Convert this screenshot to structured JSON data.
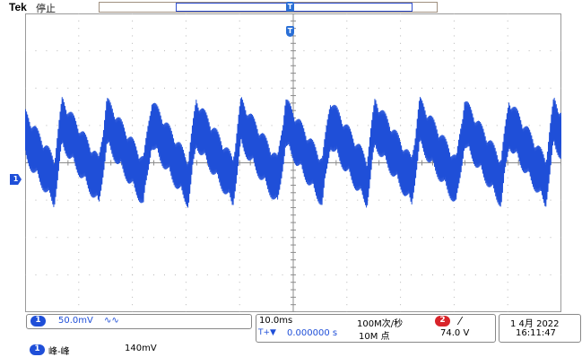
{
  "header": {
    "brand": "Tek",
    "state": "停止",
    "trigger_position_marker": "T",
    "trigger_marker": "T"
  },
  "channel1": {
    "badge": "1",
    "scale": "50.0mV",
    "coupling_symbol": "∿∿",
    "color": "#1f4fd8"
  },
  "timebase": {
    "scale": "10.0ms",
    "delay_icon": "T+▼",
    "delay": "0.000000 s",
    "sample_rate": "100M次/秒",
    "record_length": "10M 点"
  },
  "trigger": {
    "source_badge": "2",
    "slope_symbol": "⁄",
    "level": "74.0 V",
    "color": "#d8242a"
  },
  "datetime": {
    "date": "1 4月 2022",
    "time": "16:11:47"
  },
  "measurement": {
    "badge": "1",
    "label": "峰-峰",
    "value": "140mV"
  },
  "waveform": {
    "cycles": 12,
    "mean_divisions": 0.2,
    "peak_divisions": 1.6,
    "trough_divisions": -1.3,
    "ripple_divisions": 0.7
  }
}
